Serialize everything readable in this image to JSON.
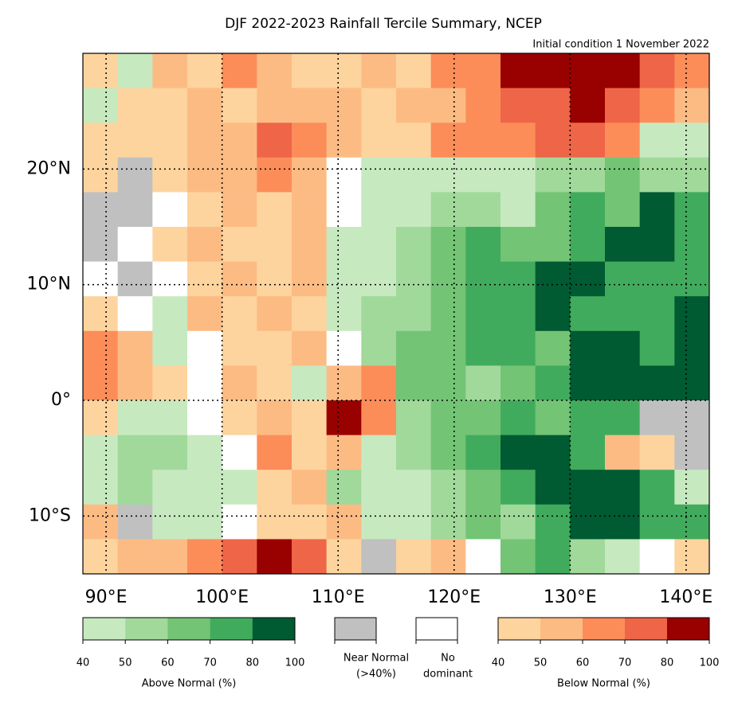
{
  "title": "DJF 2022-2023 Rainfall Tercile Summary, NCEP",
  "subtitle": "Initial condition 1 November 2022",
  "map": {
    "xlim": [
      88,
      142
    ],
    "ylim": [
      -15,
      30
    ],
    "cell": 3,
    "xticks": [
      {
        "value": 90,
        "label": "90°E"
      },
      {
        "value": 100,
        "label": "100°E"
      },
      {
        "value": 110,
        "label": "110°E"
      },
      {
        "value": 120,
        "label": "120°E"
      },
      {
        "value": 130,
        "label": "130°E"
      },
      {
        "value": 140,
        "label": "140°E"
      }
    ],
    "yticks": [
      {
        "value": -10,
        "label": "10°S"
      },
      {
        "value": 0,
        "label": "0°"
      },
      {
        "value": 10,
        "label": "10°N"
      },
      {
        "value": 20,
        "label": "20°N"
      }
    ],
    "rows": [
      "fagfhgffgfhhjjjjih",
      "affgfgggfgghiijihg",
      "fffggihgffhhhiihaa",
      "fNfgghgWaaaaabbcbb",
      "NNWfgfgWaabbacdced",
      "NWfgffgaabcdccdeed",
      "WNWfgfgaabcddeeddd",
      "fWagfgfabbcddeddde",
      "hgaWffgWbccddceede",
      "hgfWgfaghccbcdeeee",
      "faaWfgfjhbccdcddNN",
      "abbaWhfgabcdeedgfN",
      "abaaafgbaabcdeeeda",
      "gNaaWffgaabcbdeedd",
      "fgghijifNfgWcdbaWf"
    ]
  },
  "colorbars": {
    "above": {
      "label": "Above Normal (%)",
      "ticks": [
        40,
        50,
        60,
        70,
        80,
        100
      ],
      "colors": [
        "#c7e9c0",
        "#a1d99b",
        "#74c476",
        "#41ab5d",
        "#005a32"
      ]
    },
    "near": {
      "label": [
        "Near Normal",
        "(>40%)"
      ],
      "color": "#c0c0c0"
    },
    "none": {
      "label": [
        "No",
        "dominant"
      ],
      "color": "#ffffff"
    },
    "below": {
      "label": "Below Normal (%)",
      "ticks": [
        40,
        50,
        60,
        70,
        80,
        100
      ],
      "colors": [
        "#fdd49e",
        "#fdbb84",
        "#fc8d59",
        "#ef6548",
        "#990000"
      ]
    }
  }
}
